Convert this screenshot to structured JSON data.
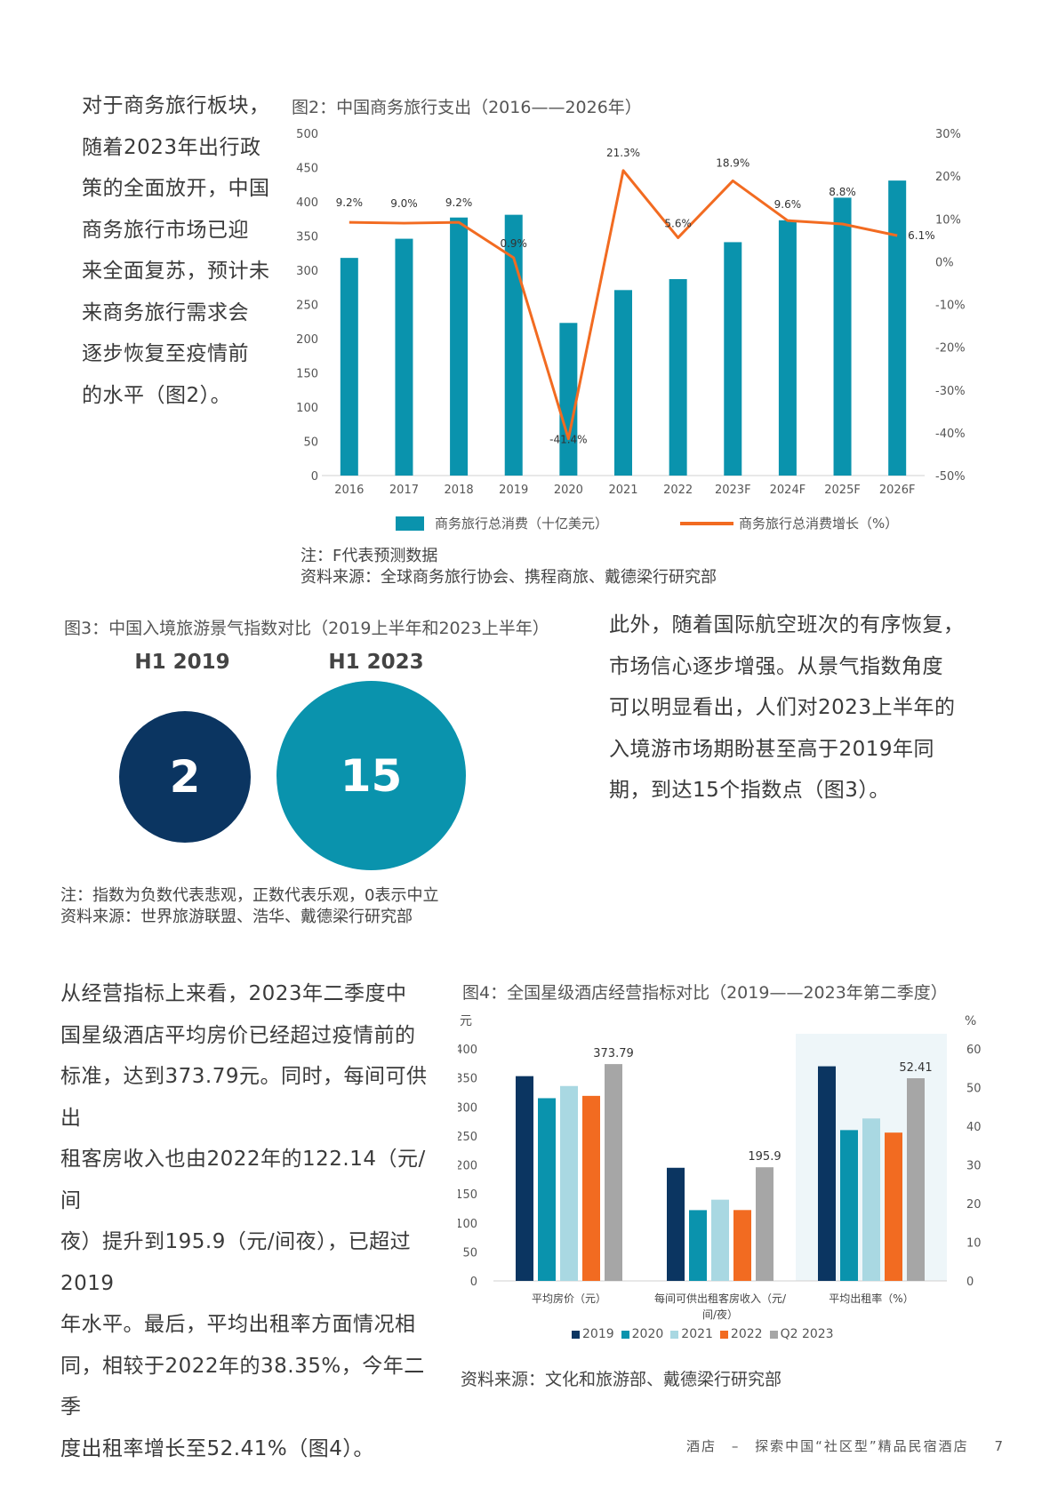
{
  "left_para1": [
    "对于商务旅行板块，",
    "随着2023年出行政",
    "策的全面放开，中国",
    "商务旅行市场已迎",
    "来全面复苏，预计未",
    "来商务旅行需求会",
    "逐步恢复至疫情前",
    "的水平（图2）。"
  ],
  "fig2": {
    "title": "图2：中国商务旅行支出（2016——2026年）",
    "note": "注：F代表预测数据",
    "source": "资料来源：全球商务旅行协会、携程商旅、戴德梁行研究部",
    "legend_bar": "商务旅行总消费（十亿美元）",
    "legend_line": "商务旅行总消费增长（%）",
    "bar_color": "#0a93ad",
    "line_color": "#f26b21"
  },
  "fig3": {
    "title": "图3：中国入境旅游景气指数对比（2019上半年和2023上半年）",
    "left_label": "H1 2019",
    "left_value": "2",
    "left_color": "#0b3561",
    "right_label": "H1 2023",
    "right_value": "15",
    "right_color": "#0a93ad",
    "note": "注：指数为负数代表悲观，正数代表乐观，0表示中立",
    "source": "资料来源：世界旅游联盟、浩华、戴德梁行研究部"
  },
  "right_para2": [
    "此外，随着国际航空班次的有序恢复，",
    "市场信心逐步增强。从景气指数角度",
    "可以明显看出，人们对2023上半年的",
    "入境游市场期盼甚至高于2019年同",
    "期，到达15个指数点（图3）。"
  ],
  "left_para3": [
    "从经营指标上来看，2023年二季度中",
    "国星级酒店平均房价已经超过疫情前的",
    "标准，达到373.79元。同时，每间可供出",
    "租客房收入也由2022年的122.14（元/间",
    "夜）提升到195.9（元/间夜），已超过2019",
    "年水平。最后，平均出租率方面情况相",
    "同，相较于2022年的38.35%，今年二季",
    "度出租率增长至52.41%（图4）。"
  ],
  "fig4": {
    "title": "图4：全国星级酒店经营指标对比（2019——2023年第二季度）",
    "source": "资料来源：文化和旅游部、戴德梁行研究部",
    "highlight_color": "#eef6f9"
  },
  "footer": {
    "left": "酒店",
    "dash": "–",
    "right": "探索中国“社区型”精品民宿酒店",
    "page": "7"
  },
  "chart_data": [
    {
      "type": "bar",
      "categories": [
        "2016",
        "2017",
        "2018",
        "2019",
        "2020",
        "2021",
        "2022",
        "2023F",
        "2024F",
        "2025F",
        "2026F"
      ],
      "series": [
        {
          "name": "商务旅行总消费（十亿美元）",
          "type": "bar",
          "axis": "left",
          "values": [
            318,
            346,
            377,
            381,
            223,
            271,
            287,
            341,
            373,
            406,
            431
          ]
        },
        {
          "name": "商务旅行总消费增长（%）",
          "type": "line",
          "axis": "right",
          "values": [
            9.2,
            9.0,
            9.2,
            0.9,
            -41.4,
            21.3,
            5.6,
            18.9,
            9.6,
            8.8,
            6.1
          ],
          "labels": [
            "9.2%",
            "9.0%",
            "9.2%",
            "0.9%",
            "-41.4%",
            "21.3%",
            "5.6%",
            "18.9%",
            "9.6%",
            "8.8%",
            "6.1%"
          ]
        }
      ],
      "ylim_left": [
        0,
        500
      ],
      "yticks_left": [
        "0",
        "50",
        "100",
        "150",
        "200",
        "250",
        "300",
        "350",
        "400",
        "450",
        "500"
      ],
      "ylim_right": [
        -50,
        30
      ],
      "yticks_right": [
        "-50%",
        "-40%",
        "-30%",
        "-20%",
        "-10%",
        "0%",
        "10%",
        "20%",
        "30%"
      ],
      "grid": false,
      "legend": "bottom"
    },
    {
      "type": "bar",
      "categories": [
        "平均房价（元）",
        "每间可供出租客房收入（元/间/夜）",
        "平均出租率（%）"
      ],
      "category_label_lines": [
        [
          "平均房价（元）"
        ],
        [
          "每间可供出租客房收入（元/",
          "间/夜）"
        ],
        [
          "平均出租率（%）"
        ]
      ],
      "series": [
        {
          "name": "2019",
          "color": "#0b3561",
          "values": [
            353,
            195,
            55.5
          ]
        },
        {
          "name": "2020",
          "color": "#0a93ad",
          "values": [
            315,
            122,
            39
          ]
        },
        {
          "name": "2021",
          "color": "#a9d8e2",
          "values": [
            336,
            140,
            42
          ]
        },
        {
          "name": "2022",
          "color": "#f26b21",
          "values": [
            319,
            122.14,
            38.35
          ]
        },
        {
          "name": "Q2 2023",
          "color": "#a6a6a6",
          "values": [
            373.79,
            195.9,
            52.41
          ]
        }
      ],
      "value_labels": [
        "373.79",
        "195.9",
        "52.41"
      ],
      "left_unit": "元",
      "right_unit": "%",
      "ylim_left": [
        0,
        400
      ],
      "yticks_left": [
        "0",
        "50",
        "100",
        "150",
        "200",
        "250",
        "300",
        "350",
        "400"
      ],
      "ylim_right": [
        0,
        60
      ],
      "yticks_right": [
        "0",
        "10",
        "20",
        "30",
        "40",
        "50",
        "60"
      ],
      "third_group_axis": "right",
      "grid": false,
      "legend": "bottom"
    }
  ]
}
